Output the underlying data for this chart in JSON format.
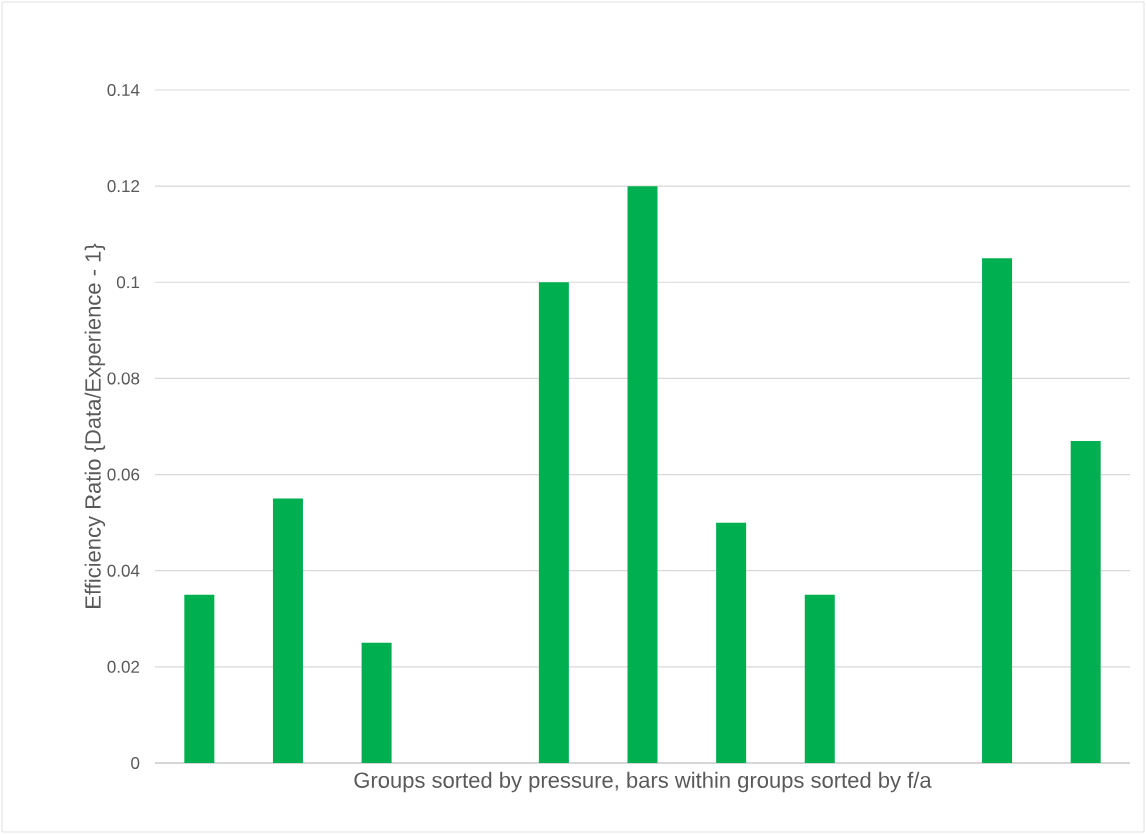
{
  "chart_data": {
    "type": "bar",
    "xlabel": "Groups sorted by pressure, bars within groups sorted by f/a",
    "ylabel": "Efficiency Ratio {Data/Experience - 1}",
    "categories": [
      null,
      null,
      null,
      null,
      null,
      null,
      null,
      null,
      null,
      null,
      null
    ],
    "values": [
      0.035,
      0.055,
      0.025,
      null,
      0.1,
      0.12,
      0.05,
      0.035,
      null,
      0.105,
      0.067
    ],
    "color": "#00b050",
    "ylim": [
      0,
      0.14
    ],
    "yticks": [
      0,
      0.02,
      0.04,
      0.06,
      0.08,
      0.1,
      0.12,
      0.14
    ],
    "grid": "y"
  }
}
